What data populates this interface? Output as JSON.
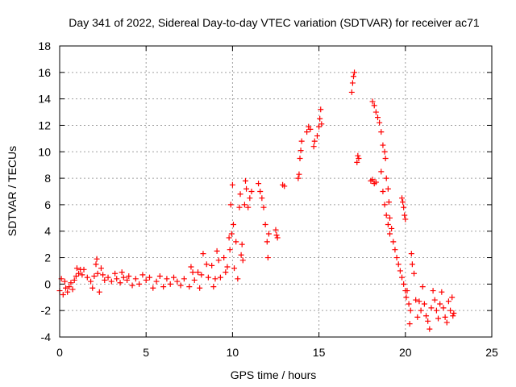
{
  "chart_data": {
    "type": "scatter",
    "title": "Day 341 of 2022, Sidereal Day-to-day VTEC variation (SDTVAR) for receiver ac71",
    "xlabel": "GPS time / hours",
    "ylabel": "SDTVAR / TECUs",
    "xlim": [
      0,
      25
    ],
    "ylim": [
      -4,
      18
    ],
    "xticks": [
      0,
      5,
      10,
      15,
      20,
      25
    ],
    "yticks": [
      -4,
      -2,
      0,
      2,
      4,
      6,
      8,
      10,
      12,
      14,
      16,
      18
    ],
    "grid": true,
    "marker": "+",
    "color": "#ff0000",
    "series": [
      {
        "name": "ac71",
        "points": [
          [
            0.0,
            -0.5
          ],
          [
            0.1,
            0.4
          ],
          [
            0.2,
            -0.8
          ],
          [
            0.3,
            0.2
          ],
          [
            0.35,
            -0.3
          ],
          [
            0.45,
            -0.6
          ],
          [
            0.55,
            -0.2
          ],
          [
            0.65,
            0.1
          ],
          [
            0.75,
            -0.4
          ],
          [
            0.85,
            0.3
          ],
          [
            0.95,
            0.6
          ],
          [
            1.0,
            1.2
          ],
          [
            1.1,
            0.8
          ],
          [
            1.2,
            1.1
          ],
          [
            1.3,
            0.7
          ],
          [
            1.4,
            1.1
          ],
          [
            1.6,
            0.5
          ],
          [
            1.8,
            0.2
          ],
          [
            1.9,
            -0.3
          ],
          [
            2.0,
            0.6
          ],
          [
            2.1,
            1.5
          ],
          [
            2.15,
            1.9
          ],
          [
            2.2,
            0.8
          ],
          [
            2.3,
            -0.6
          ],
          [
            2.4,
            1.2
          ],
          [
            2.5,
            0.7
          ],
          [
            2.6,
            0.3
          ],
          [
            2.8,
            0.5
          ],
          [
            3.0,
            0.2
          ],
          [
            3.2,
            0.8
          ],
          [
            3.3,
            0.4
          ],
          [
            3.5,
            0.1
          ],
          [
            3.6,
            0.9
          ],
          [
            3.7,
            0.5
          ],
          [
            3.9,
            0.3
          ],
          [
            4.0,
            0.6
          ],
          [
            4.2,
            -0.1
          ],
          [
            4.4,
            0.4
          ],
          [
            4.6,
            0.0
          ],
          [
            4.8,
            0.7
          ],
          [
            5.0,
            0.3
          ],
          [
            5.2,
            0.5
          ],
          [
            5.4,
            -0.3
          ],
          [
            5.6,
            0.2
          ],
          [
            5.8,
            0.6
          ],
          [
            6.0,
            -0.2
          ],
          [
            6.2,
            0.4
          ],
          [
            6.4,
            0.0
          ],
          [
            6.6,
            0.5
          ],
          [
            6.8,
            0.2
          ],
          [
            7.0,
            -0.1
          ],
          [
            7.2,
            0.4
          ],
          [
            7.5,
            -0.2
          ],
          [
            7.6,
            1.3
          ],
          [
            7.7,
            0.9
          ],
          [
            7.8,
            0.3
          ],
          [
            8.0,
            0.9
          ],
          [
            8.1,
            -0.3
          ],
          [
            8.2,
            0.7
          ],
          [
            8.3,
            2.3
          ],
          [
            8.5,
            1.5
          ],
          [
            8.6,
            0.5
          ],
          [
            8.8,
            1.4
          ],
          [
            8.9,
            -0.2
          ],
          [
            9.0,
            0.4
          ],
          [
            9.1,
            2.5
          ],
          [
            9.2,
            1.8
          ],
          [
            9.3,
            0.5
          ],
          [
            9.5,
            2.0
          ],
          [
            9.6,
            0.9
          ],
          [
            9.7,
            1.3
          ],
          [
            9.8,
            3.5
          ],
          [
            9.85,
            2.6
          ],
          [
            9.9,
            6.0
          ],
          [
            9.95,
            3.8
          ],
          [
            10.0,
            7.5
          ],
          [
            10.05,
            4.5
          ],
          [
            10.1,
            1.2
          ],
          [
            10.2,
            3.2
          ],
          [
            10.3,
            0.4
          ],
          [
            10.4,
            5.8
          ],
          [
            10.45,
            6.8
          ],
          [
            10.5,
            2.2
          ],
          [
            10.55,
            3.0
          ],
          [
            10.6,
            1.8
          ],
          [
            10.7,
            6.0
          ],
          [
            10.75,
            7.8
          ],
          [
            10.8,
            7.2
          ],
          [
            10.9,
            5.8
          ],
          [
            11.0,
            6.5
          ],
          [
            11.1,
            7.0
          ],
          [
            11.5,
            7.6
          ],
          [
            11.6,
            7.0
          ],
          [
            11.7,
            6.5
          ],
          [
            11.8,
            5.8
          ],
          [
            11.9,
            4.5
          ],
          [
            12.0,
            3.2
          ],
          [
            12.05,
            2.0
          ],
          [
            12.1,
            3.8
          ],
          [
            12.5,
            4.1
          ],
          [
            12.55,
            3.7
          ],
          [
            12.6,
            3.5
          ],
          [
            12.9,
            7.5
          ],
          [
            13.0,
            7.4
          ],
          [
            13.8,
            8.0
          ],
          [
            13.85,
            8.3
          ],
          [
            13.9,
            9.5
          ],
          [
            13.95,
            10.1
          ],
          [
            14.0,
            10.8
          ],
          [
            14.3,
            11.5
          ],
          [
            14.4,
            11.9
          ],
          [
            14.5,
            11.7
          ],
          [
            14.7,
            10.4
          ],
          [
            14.75,
            10.8
          ],
          [
            14.9,
            11.2
          ],
          [
            15.0,
            11.9
          ],
          [
            15.05,
            12.5
          ],
          [
            15.1,
            13.2
          ],
          [
            15.15,
            12.1
          ],
          [
            16.9,
            14.5
          ],
          [
            16.95,
            15.2
          ],
          [
            17.0,
            15.7
          ],
          [
            17.05,
            16.0
          ],
          [
            17.2,
            9.2
          ],
          [
            17.25,
            9.7
          ],
          [
            17.3,
            9.5
          ],
          [
            18.0,
            7.8
          ],
          [
            18.1,
            7.9
          ],
          [
            18.2,
            7.6
          ],
          [
            18.3,
            7.7
          ],
          [
            18.1,
            13.8
          ],
          [
            18.2,
            13.5
          ],
          [
            18.3,
            13.0
          ],
          [
            18.4,
            12.6
          ],
          [
            18.5,
            12.2
          ],
          [
            18.6,
            11.5
          ],
          [
            18.7,
            10.5
          ],
          [
            18.8,
            10.0
          ],
          [
            18.85,
            9.5
          ],
          [
            18.9,
            8.0
          ],
          [
            19.0,
            7.2
          ],
          [
            19.05,
            6.2
          ],
          [
            19.1,
            5.0
          ],
          [
            19.2,
            4.2
          ],
          [
            18.6,
            8.5
          ],
          [
            18.7,
            7.0
          ],
          [
            18.8,
            6.0
          ],
          [
            18.9,
            5.2
          ],
          [
            19.0,
            4.5
          ],
          [
            19.1,
            3.8
          ],
          [
            19.3,
            3.2
          ],
          [
            19.4,
            2.6
          ],
          [
            19.5,
            2.0
          ],
          [
            19.6,
            1.5
          ],
          [
            19.7,
            1.0
          ],
          [
            19.8,
            0.5
          ],
          [
            19.9,
            0.0
          ],
          [
            20.0,
            -0.5
          ],
          [
            20.05,
            -1.0
          ],
          [
            19.8,
            6.5
          ],
          [
            19.85,
            6.2
          ],
          [
            19.9,
            5.8
          ],
          [
            19.95,
            5.2
          ],
          [
            20.0,
            4.9
          ],
          [
            20.1,
            -0.5
          ],
          [
            20.2,
            -1.5
          ],
          [
            20.25,
            -3.0
          ],
          [
            20.3,
            -2.0
          ],
          [
            20.35,
            2.3
          ],
          [
            20.4,
            1.5
          ],
          [
            20.5,
            0.8
          ],
          [
            20.6,
            -1.2
          ],
          [
            20.7,
            -2.5
          ],
          [
            20.8,
            -1.3
          ],
          [
            20.9,
            -2.0
          ],
          [
            21.0,
            -0.2
          ],
          [
            21.1,
            -1.5
          ],
          [
            21.2,
            -2.4
          ],
          [
            21.3,
            -2.8
          ],
          [
            21.4,
            -3.4
          ],
          [
            21.5,
            -1.8
          ],
          [
            21.6,
            -0.5
          ],
          [
            21.7,
            -1.2
          ],
          [
            21.8,
            -2.0
          ],
          [
            21.9,
            -2.6
          ],
          [
            22.0,
            -1.5
          ],
          [
            22.1,
            -0.6
          ],
          [
            22.2,
            -1.8
          ],
          [
            22.3,
            -2.5
          ],
          [
            22.4,
            -2.9
          ],
          [
            22.5,
            -1.3
          ],
          [
            22.6,
            -2.0
          ],
          [
            22.7,
            -1.0
          ],
          [
            22.75,
            -2.4
          ],
          [
            22.8,
            -2.2
          ]
        ]
      }
    ]
  }
}
